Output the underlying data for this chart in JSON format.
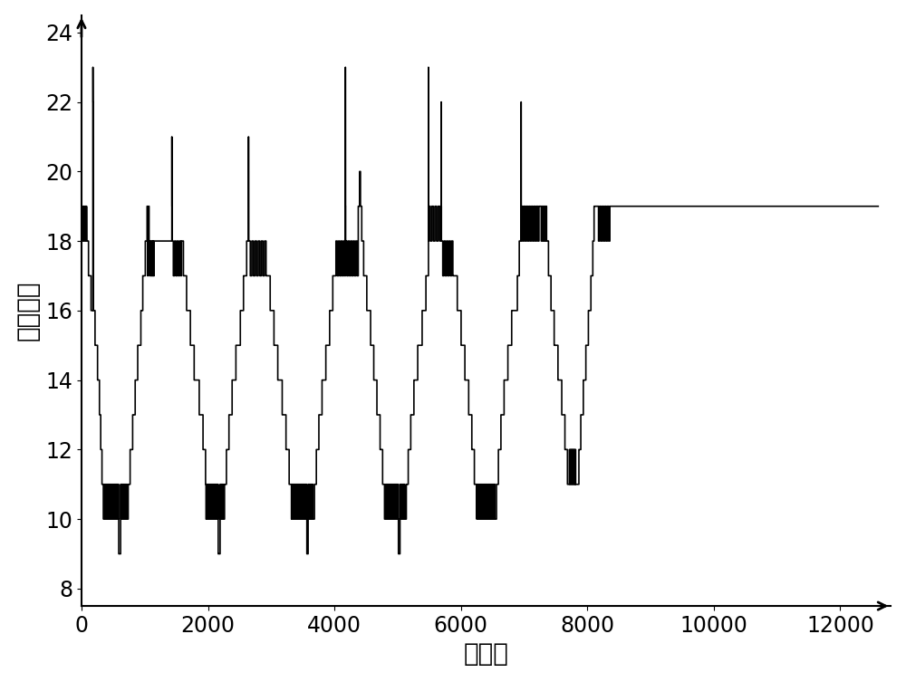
{
  "xlabel": "采样点",
  "ylabel": "电压排名",
  "xlim": [
    0,
    12800
  ],
  "ylim": [
    7.5,
    24.5
  ],
  "xticks": [
    0,
    2000,
    4000,
    6000,
    8000,
    10000,
    12000
  ],
  "yticks": [
    8,
    10,
    12,
    14,
    16,
    18,
    20,
    22,
    24
  ],
  "line_color": "black",
  "line_width": 1.2,
  "bg_color": "white",
  "xlabel_fontsize": 20,
  "ylabel_fontsize": 20,
  "tick_fontsize": 17
}
